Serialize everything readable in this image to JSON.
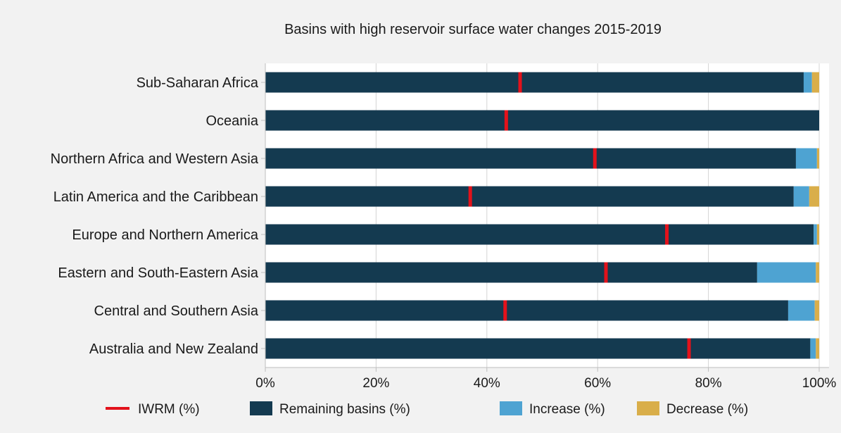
{
  "chart_data": {
    "type": "bar",
    "orientation": "horizontal",
    "stacked": true,
    "title": "Basins with high reservoir surface water changes 2015-2019",
    "xlabel": "",
    "ylabel": "",
    "xlim": [
      0,
      100
    ],
    "x_ticks": [
      0,
      20,
      40,
      60,
      80,
      100
    ],
    "x_tick_labels": [
      "0%",
      "20%",
      "40%",
      "60%",
      "80%",
      "100%"
    ],
    "grid": "vertical",
    "legend_position": "bottom",
    "categories": [
      "Sub-Saharan Africa",
      "Oceania",
      "Northern Africa and Western Asia",
      "Latin America and the Caribbean",
      "Europe and Northern America",
      "Eastern and South-Eastern Asia",
      "Central and Southern Asia",
      "Australia and New Zealand"
    ],
    "series": [
      {
        "name": "Remaining basins (%)",
        "color": "#143a50",
        "values": [
          97.2,
          100,
          95.8,
          95.4,
          99.0,
          88.8,
          94.4,
          98.4
        ]
      },
      {
        "name": "Increase (%)",
        "color": "#4ea3d2",
        "values": [
          1.5,
          0,
          3.8,
          2.8,
          0.6,
          10.6,
          4.8,
          1.0
        ]
      },
      {
        "name": "Decrease (%)",
        "color": "#d9ae4a",
        "values": [
          1.3,
          0,
          0.4,
          1.8,
          0.4,
          0.6,
          0.8,
          0.6
        ]
      }
    ],
    "markers": {
      "name": "IWRM (%)",
      "color": "#e3121b",
      "values": [
        46,
        43.5,
        59.5,
        37,
        72.5,
        61.5,
        43.3,
        76.5
      ]
    },
    "legend": [
      {
        "name": "IWRM (%)",
        "kind": "line",
        "color": "#e3121b"
      },
      {
        "name": "Remaining basins (%)",
        "kind": "box",
        "color": "#143a50"
      },
      {
        "name": "Increase (%)",
        "kind": "box",
        "color": "#4ea3d2"
      },
      {
        "name": "Decrease (%)",
        "kind": "box",
        "color": "#d9ae4a"
      }
    ]
  }
}
